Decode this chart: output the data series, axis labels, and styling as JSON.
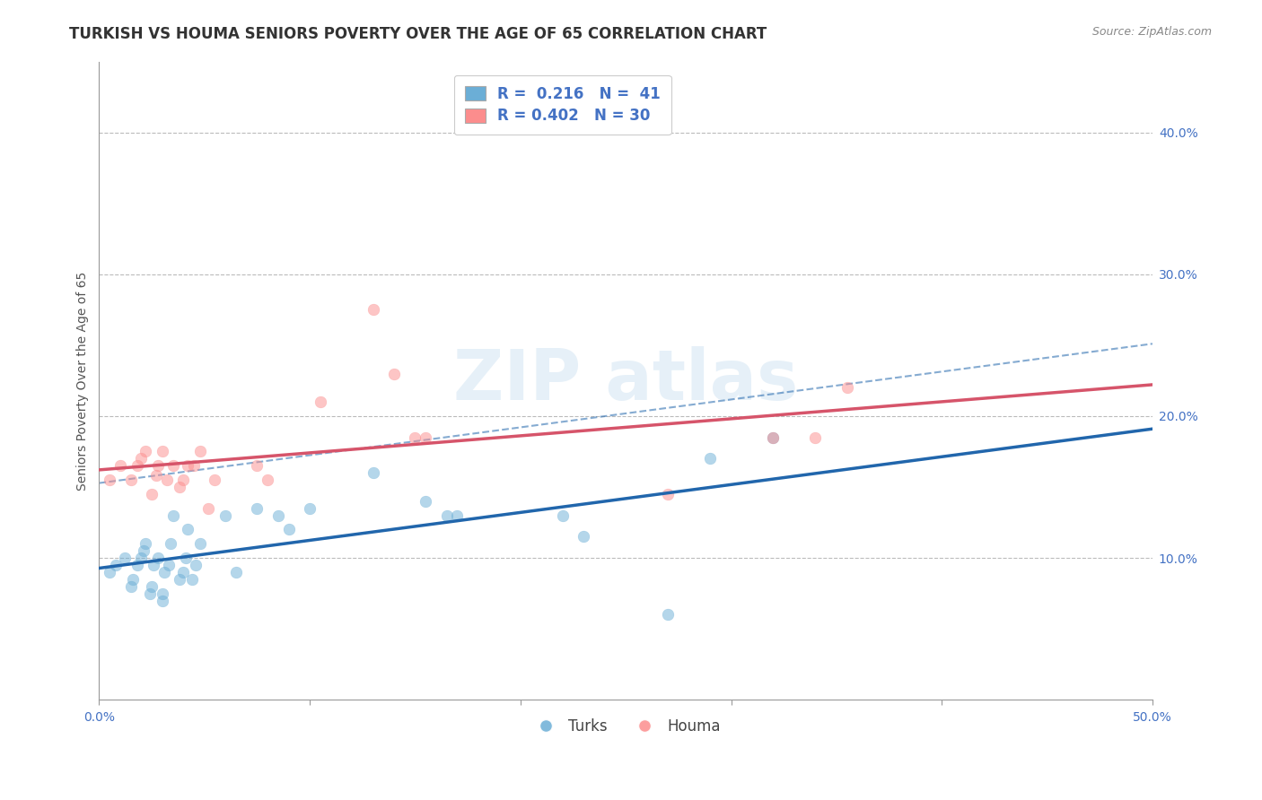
{
  "title": "TURKISH VS HOUMA SENIORS POVERTY OVER THE AGE OF 65 CORRELATION CHART",
  "source": "Source: ZipAtlas.com",
  "ylabel": "Seniors Poverty Over the Age of 65",
  "xlim": [
    0.0,
    0.5
  ],
  "ylim": [
    0.0,
    0.45
  ],
  "xticks": [
    0.0,
    0.1,
    0.2,
    0.3,
    0.4,
    0.5
  ],
  "xticklabels": [
    "0.0%",
    "",
    "",
    "",
    "",
    "50.0%"
  ],
  "yticks_left": [],
  "yticks_right": [
    0.1,
    0.2,
    0.3,
    0.4
  ],
  "yticklabels_right": [
    "10.0%",
    "20.0%",
    "30.0%",
    "40.0%"
  ],
  "grid_yticks": [
    0.1,
    0.2,
    0.3,
    0.4
  ],
  "turks_R": 0.216,
  "turks_N": 41,
  "houma_R": 0.402,
  "houma_N": 30,
  "turks_color": "#6baed6",
  "houma_color": "#fc8d8d",
  "turks_line_color": "#2166ac",
  "houma_line_color": "#d6546a",
  "turks_x": [
    0.005,
    0.008,
    0.012,
    0.015,
    0.016,
    0.018,
    0.02,
    0.021,
    0.022,
    0.024,
    0.025,
    0.026,
    0.028,
    0.03,
    0.03,
    0.031,
    0.033,
    0.034,
    0.035,
    0.038,
    0.04,
    0.041,
    0.042,
    0.044,
    0.046,
    0.048,
    0.06,
    0.065,
    0.075,
    0.085,
    0.09,
    0.1,
    0.13,
    0.155,
    0.165,
    0.17,
    0.22,
    0.23,
    0.27,
    0.29,
    0.32
  ],
  "turks_y": [
    0.09,
    0.095,
    0.1,
    0.08,
    0.085,
    0.095,
    0.1,
    0.105,
    0.11,
    0.075,
    0.08,
    0.095,
    0.1,
    0.07,
    0.075,
    0.09,
    0.095,
    0.11,
    0.13,
    0.085,
    0.09,
    0.1,
    0.12,
    0.085,
    0.095,
    0.11,
    0.13,
    0.09,
    0.135,
    0.13,
    0.12,
    0.135,
    0.16,
    0.14,
    0.13,
    0.13,
    0.13,
    0.115,
    0.06,
    0.17,
    0.185
  ],
  "houma_x": [
    0.005,
    0.01,
    0.015,
    0.018,
    0.02,
    0.022,
    0.025,
    0.027,
    0.028,
    0.03,
    0.032,
    0.035,
    0.038,
    0.04,
    0.042,
    0.045,
    0.048,
    0.052,
    0.055,
    0.075,
    0.08,
    0.105,
    0.13,
    0.14,
    0.15,
    0.155,
    0.27,
    0.32,
    0.34,
    0.355
  ],
  "houma_y": [
    0.155,
    0.165,
    0.155,
    0.165,
    0.17,
    0.175,
    0.145,
    0.158,
    0.165,
    0.175,
    0.155,
    0.165,
    0.15,
    0.155,
    0.165,
    0.165,
    0.175,
    0.135,
    0.155,
    0.165,
    0.155,
    0.21,
    0.275,
    0.23,
    0.185,
    0.185,
    0.145,
    0.185,
    0.185,
    0.22
  ],
  "title_fontsize": 12,
  "axis_label_fontsize": 10,
  "tick_fontsize": 10,
  "legend_fontsize": 12,
  "marker_size": 85,
  "marker_alpha": 0.5
}
